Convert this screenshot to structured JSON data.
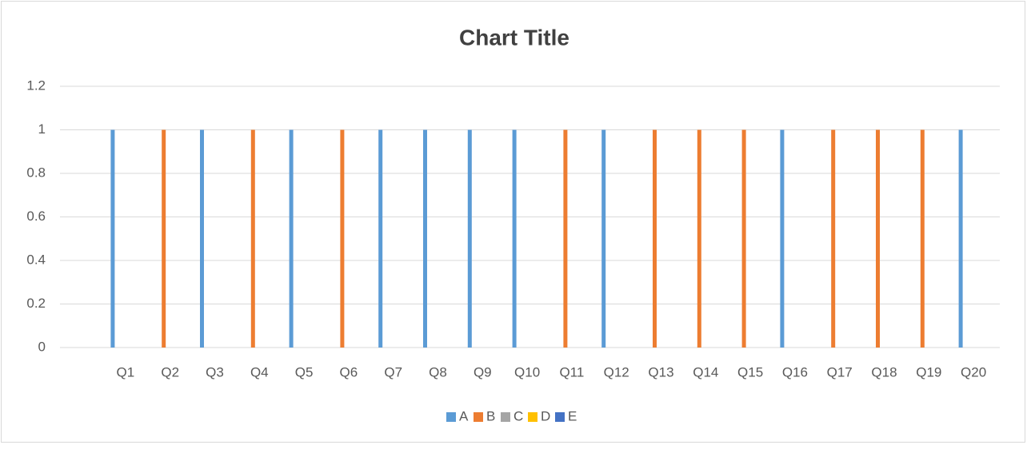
{
  "chart_data": {
    "type": "bar",
    "title": "Chart Title",
    "categories": [
      "Q1",
      "Q2",
      "Q3",
      "Q4",
      "Q5",
      "Q6",
      "Q7",
      "Q8",
      "Q9",
      "Q10",
      "Q11",
      "Q12",
      "Q13",
      "Q14",
      "Q15",
      "Q16",
      "Q17",
      "Q18",
      "Q19",
      "Q20"
    ],
    "series": [
      {
        "name": "A",
        "color": "#5b9bd5",
        "values": [
          1,
          0,
          1,
          0,
          1,
          0,
          1,
          1,
          1,
          1,
          0,
          1,
          0,
          0,
          0,
          1,
          0,
          0,
          0,
          1
        ]
      },
      {
        "name": "B",
        "color": "#ed7d31",
        "values": [
          0,
          1,
          0,
          1,
          0,
          1,
          0,
          0,
          0,
          0,
          1,
          0,
          1,
          1,
          1,
          0,
          1,
          1,
          1,
          0
        ]
      },
      {
        "name": "C",
        "color": "#a5a5a5",
        "values": [
          0,
          0,
          0,
          0,
          0,
          0,
          0,
          0,
          0,
          0,
          0,
          0,
          0,
          0,
          0,
          0,
          0,
          0,
          0,
          0
        ]
      },
      {
        "name": "D",
        "color": "#ffc000",
        "values": [
          0,
          0,
          0,
          0,
          0,
          0,
          0,
          0,
          0,
          0,
          0,
          0,
          0,
          0,
          0,
          0,
          0,
          0,
          0,
          0
        ]
      },
      {
        "name": "E",
        "color": "#4472c4",
        "values": [
          0,
          0,
          0,
          0,
          0,
          0,
          0,
          0,
          0,
          0,
          0,
          0,
          0,
          0,
          0,
          0,
          0,
          0,
          0,
          0
        ]
      }
    ],
    "ylim": [
      0,
      1.2
    ],
    "yticks": [
      0,
      0.2,
      0.4,
      0.6,
      0.8,
      1,
      1.2
    ],
    "grid": true,
    "legend": "bottom"
  }
}
